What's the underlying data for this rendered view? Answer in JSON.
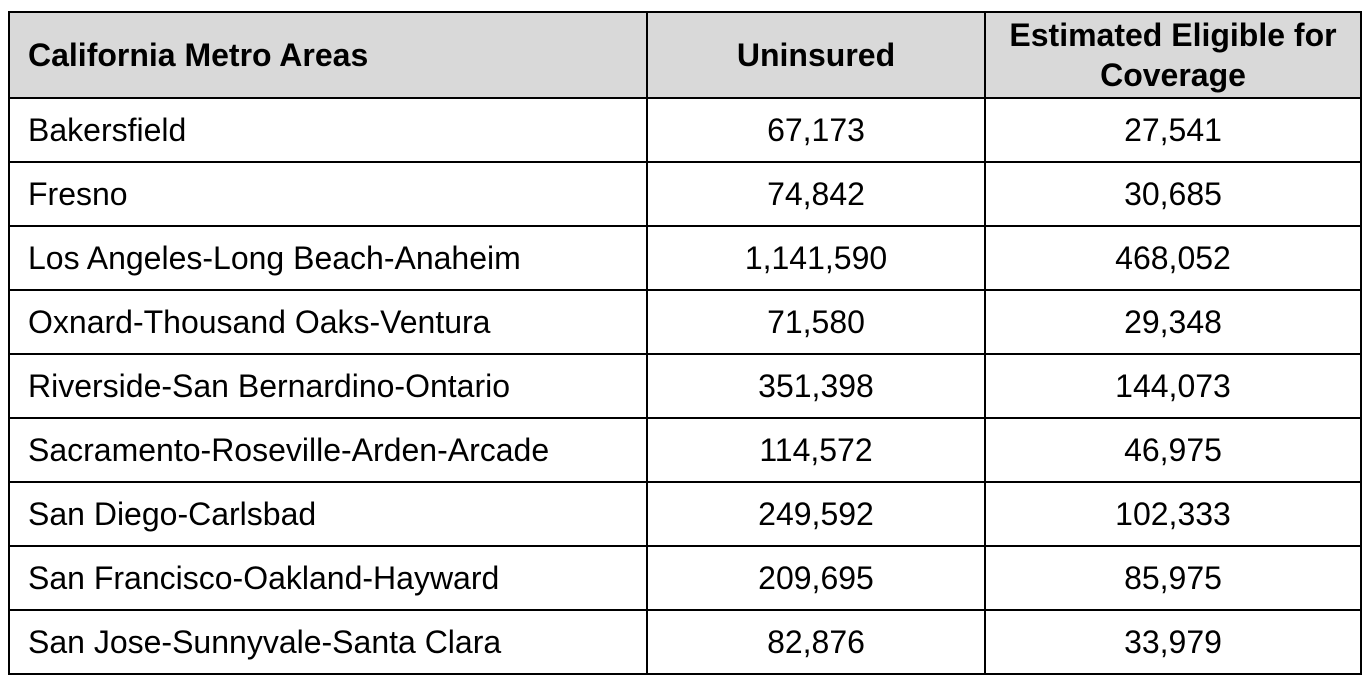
{
  "table": {
    "headers": {
      "area": "California Metro Areas",
      "uninsured": "Uninsured",
      "eligible": "Estimated Eligible for Coverage"
    },
    "rows": [
      {
        "area": "Bakersfield",
        "uninsured": "67,173",
        "eligible": "27,541"
      },
      {
        "area": "Fresno",
        "uninsured": "74,842",
        "eligible": "30,685"
      },
      {
        "area": "Los Angeles-Long Beach-Anaheim",
        "uninsured": "1,141,590",
        "eligible": "468,052"
      },
      {
        "area": "Oxnard-Thousand Oaks-Ventura",
        "uninsured": "71,580",
        "eligible": "29,348"
      },
      {
        "area": "Riverside-San Bernardino-Ontario",
        "uninsured": "351,398",
        "eligible": "144,073"
      },
      {
        "area": "Sacramento-Roseville-Arden-Arcade",
        "uninsured": "114,572",
        "eligible": "46,975"
      },
      {
        "area": "San Diego-Carlsbad",
        "uninsured": "249,592",
        "eligible": "102,333"
      },
      {
        "area": "San Francisco-Oakland-Hayward",
        "uninsured": "209,695",
        "eligible": "85,975"
      },
      {
        "area": "San Jose-Sunnyvale-Santa Clara",
        "uninsured": "82,876",
        "eligible": "33,979"
      }
    ]
  },
  "colors": {
    "header_background": "#d9d9d9",
    "border": "#000000",
    "text": "#000000"
  }
}
